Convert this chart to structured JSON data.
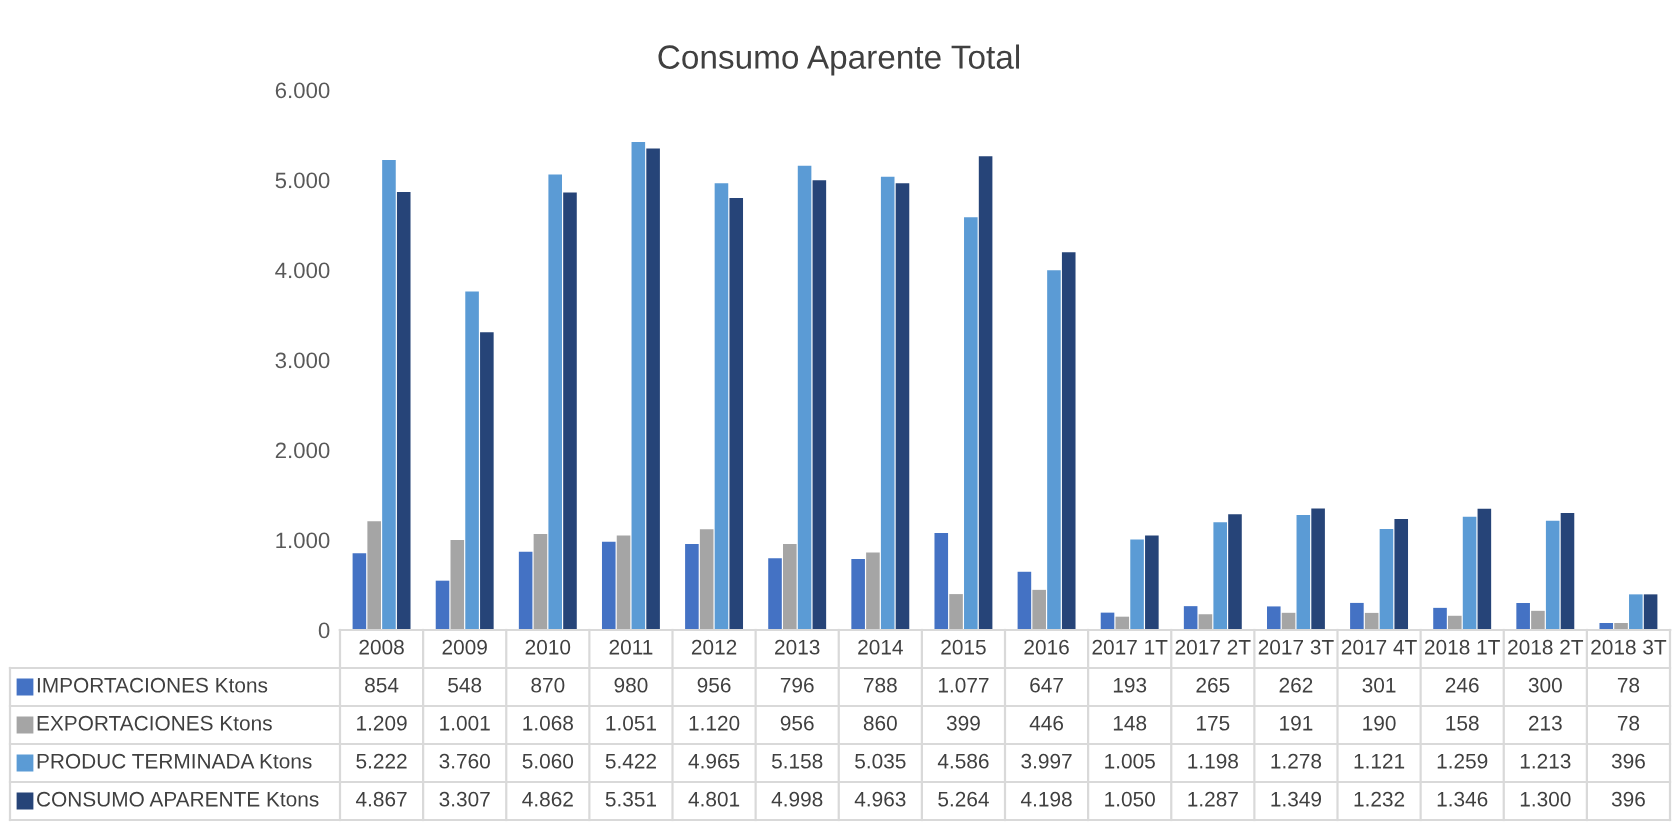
{
  "chart_data": {
    "type": "bar",
    "title": "Consumo Aparente Total",
    "categories": [
      "2008",
      "2009",
      "2010",
      "2011",
      "2012",
      "2013",
      "2014",
      "2015",
      "2016",
      "2017 1T",
      "2017 2T",
      "2017 3T",
      "2017 4T",
      "2018 1T",
      "2018 2T",
      "2018 3T"
    ],
    "series": [
      {
        "name": "IMPORTACIONES Ktons",
        "color": "#4472c4",
        "values": [
          854,
          548,
          870,
          980,
          956,
          796,
          788,
          1077,
          647,
          193,
          265,
          262,
          301,
          246,
          300,
          78
        ],
        "value_labels": [
          "854",
          "548",
          "870",
          "980",
          "956",
          "796",
          "788",
          "1.077",
          "647",
          "193",
          "265",
          "262",
          "301",
          "246",
          "300",
          "78"
        ]
      },
      {
        "name": "EXPORTACIONES Ktons",
        "color": "#a5a5a5",
        "values": [
          1209,
          1001,
          1068,
          1051,
          1120,
          956,
          860,
          399,
          446,
          148,
          175,
          191,
          190,
          158,
          213,
          78
        ],
        "value_labels": [
          "1.209",
          "1.001",
          "1.068",
          "1.051",
          "1.120",
          "956",
          "860",
          "399",
          "446",
          "148",
          "175",
          "191",
          "190",
          "158",
          "213",
          "78"
        ]
      },
      {
        "name": "PRODUC TERMINADA Ktons",
        "color": "#5b9bd5",
        "values": [
          5222,
          3760,
          5060,
          5422,
          4965,
          5158,
          5035,
          4586,
          3997,
          1005,
          1198,
          1278,
          1121,
          1259,
          1213,
          396
        ],
        "value_labels": [
          "5.222",
          "3.760",
          "5.060",
          "5.422",
          "4.965",
          "5.158",
          "5.035",
          "4.586",
          "3.997",
          "1.005",
          "1.198",
          "1.278",
          "1.121",
          "1.259",
          "1.213",
          "396"
        ]
      },
      {
        "name": "CONSUMO APARENTE Ktons",
        "color": "#264478",
        "values": [
          4867,
          3307,
          4862,
          5351,
          4801,
          4998,
          4963,
          5264,
          4198,
          1050,
          1287,
          1349,
          1232,
          1346,
          1300,
          396
        ],
        "value_labels": [
          "4.867",
          "3.307",
          "4.862",
          "5.351",
          "4.801",
          "4.998",
          "4.963",
          "5.264",
          "4.198",
          "1.050",
          "1.287",
          "1.349",
          "1.232",
          "1.346",
          "1.300",
          "396"
        ]
      }
    ],
    "ylim": [
      0,
      6000
    ],
    "yticks": [
      {
        "value": 0,
        "label": "0"
      },
      {
        "value": 1000,
        "label": "1.000"
      },
      {
        "value": 2000,
        "label": "2.000"
      },
      {
        "value": 3000,
        "label": "3.000"
      },
      {
        "value": 4000,
        "label": "4.000"
      },
      {
        "value": 5000,
        "label": "5.000"
      },
      {
        "value": 6000,
        "label": "6.000"
      }
    ],
    "grid": false,
    "legend": "bottom"
  }
}
